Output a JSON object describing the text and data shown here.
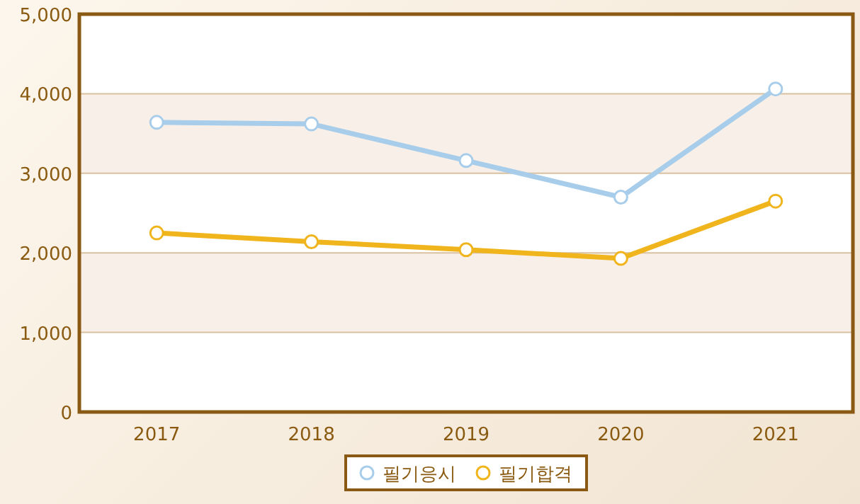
{
  "chart_data": {
    "type": "line",
    "categories": [
      "2017",
      "2018",
      "2019",
      "2020",
      "2021"
    ],
    "series": [
      {
        "name": "필기응시",
        "color": "#a8cdea",
        "values": [
          3640,
          3620,
          3160,
          2700,
          4060
        ]
      },
      {
        "name": "필기합격",
        "color": "#f0b41c",
        "values": [
          2250,
          2140,
          2040,
          1930,
          2650
        ]
      }
    ],
    "ylim": [
      0,
      5000
    ],
    "yticks": [
      {
        "value": 0,
        "label": "0"
      },
      {
        "value": 1000,
        "label": "1,000"
      },
      {
        "value": 2000,
        "label": "2,000"
      },
      {
        "value": 3000,
        "label": "3,000"
      },
      {
        "value": 4000,
        "label": "4,000"
      },
      {
        "value": 5000,
        "label": "5,000"
      }
    ],
    "grid": "y",
    "legend": "bottom",
    "marker": "circle"
  }
}
